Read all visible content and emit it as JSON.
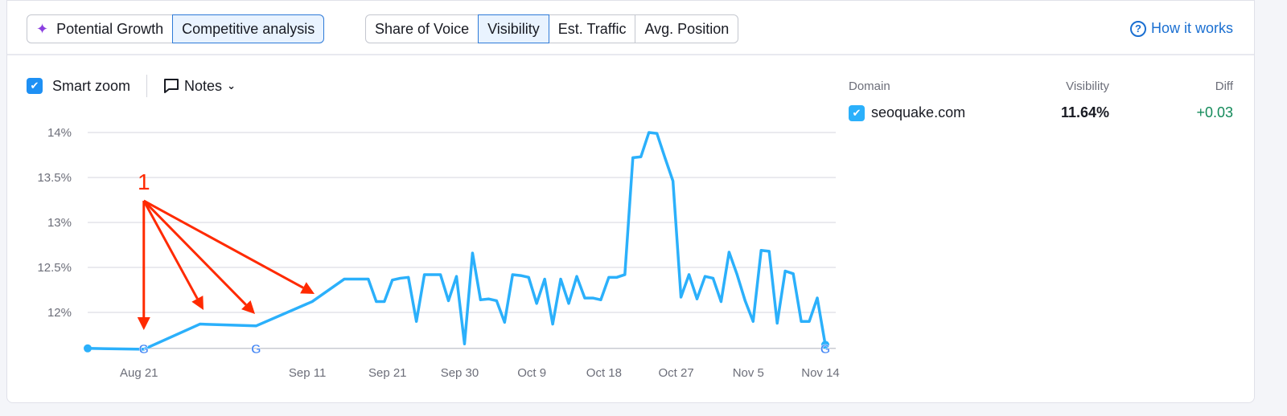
{
  "header": {
    "mode_tabs": [
      {
        "label": "Potential Growth",
        "icon": "sparkle-icon",
        "active": false
      },
      {
        "label": "Competitive analysis",
        "active": true
      }
    ],
    "metric_tabs": [
      {
        "label": "Share of Voice",
        "active": false
      },
      {
        "label": "Visibility",
        "active": true
      },
      {
        "label": "Est. Traffic",
        "active": false
      },
      {
        "label": "Avg. Position",
        "active": false
      }
    ],
    "how_it_works": "How it works"
  },
  "toolbar": {
    "smart_zoom_label": "Smart zoom",
    "smart_zoom_checked": true,
    "notes_label": "Notes"
  },
  "legend": {
    "columns": [
      "Domain",
      "Visibility",
      "Diff"
    ],
    "rows": [
      {
        "domain": "seoquake.com",
        "visibility": "11.64%",
        "diff": "+0.03",
        "checked": true
      }
    ]
  },
  "colors": {
    "line": "#2bb0fb",
    "accent": "#1a6fd1",
    "annotation": "#ff2a00",
    "diff_positive": "#138a5a"
  },
  "chart_data": {
    "type": "line",
    "y_ticks": [
      "14%",
      "13.5%",
      "13%",
      "12.5%",
      "12%"
    ],
    "y_tick_values": [
      14,
      13.5,
      13,
      12.5,
      12
    ],
    "ylim": [
      11.6,
      14
    ],
    "x_ticks": [
      "Aug 21",
      "Sep 11",
      "Sep 21",
      "Sep 30",
      "Oct 9",
      "Oct 18",
      "Oct 27",
      "Nov 5",
      "Nov 14"
    ],
    "grid": true,
    "google_update_markers": [
      "Aug 21",
      "Sep 4",
      "Nov 14"
    ],
    "annotation": {
      "label": "1",
      "targets": [
        "Aug 21",
        "Aug 28",
        "Sep 4",
        "Sep 11"
      ]
    },
    "series": [
      {
        "points": [
          [
            "Aug 14",
            11.6
          ],
          [
            "Aug 21",
            11.59
          ],
          [
            "Aug 28",
            11.87
          ],
          [
            "Sep 4",
            11.85
          ],
          [
            "Sep 11",
            12.12
          ],
          [
            "Sep 15",
            12.37
          ],
          [
            "Sep 16",
            12.37
          ],
          [
            "Sep 17",
            12.37
          ],
          [
            "Sep 18",
            12.37
          ],
          [
            "Sep 19",
            12.12
          ],
          [
            "Sep 20",
            12.12
          ],
          [
            "Sep 21",
            12.36
          ],
          [
            "Sep 22",
            12.38
          ],
          [
            "Sep 23",
            12.39
          ],
          [
            "Sep 24",
            11.9
          ],
          [
            "Sep 25",
            12.42
          ],
          [
            "Sep 26",
            12.42
          ],
          [
            "Sep 27",
            12.42
          ],
          [
            "Sep 28",
            12.13
          ],
          [
            "Sep 29",
            12.4
          ],
          [
            "Sep 30",
            11.65
          ],
          [
            "Oct 1",
            12.66
          ],
          [
            "Oct 2",
            12.14
          ],
          [
            "Oct 3",
            12.15
          ],
          [
            "Oct 4",
            12.13
          ],
          [
            "Oct 5",
            11.89
          ],
          [
            "Oct 6",
            12.42
          ],
          [
            "Oct 7",
            12.41
          ],
          [
            "Oct 8",
            12.39
          ],
          [
            "Oct 9",
            12.1
          ],
          [
            "Oct 10",
            12.37
          ],
          [
            "Oct 11",
            11.87
          ],
          [
            "Oct 12",
            12.37
          ],
          [
            "Oct 13",
            12.1
          ],
          [
            "Oct 14",
            12.4
          ],
          [
            "Oct 15",
            12.16
          ],
          [
            "Oct 16",
            12.16
          ],
          [
            "Oct 17",
            12.14
          ],
          [
            "Oct 18",
            12.39
          ],
          [
            "Oct 19",
            12.39
          ],
          [
            "Oct 20",
            12.42
          ],
          [
            "Oct 21",
            13.72
          ],
          [
            "Oct 22",
            13.73
          ],
          [
            "Oct 23",
            14.0
          ],
          [
            "Oct 24",
            13.99
          ],
          [
            "Oct 25",
            13.72
          ],
          [
            "Oct 26",
            13.46
          ],
          [
            "Oct 27",
            12.17
          ],
          [
            "Oct 28",
            12.42
          ],
          [
            "Oct 29",
            12.15
          ],
          [
            "Oct 30",
            12.4
          ],
          [
            "Oct 31",
            12.38
          ],
          [
            "Nov 1",
            12.12
          ],
          [
            "Nov 2",
            12.67
          ],
          [
            "Nov 3",
            12.42
          ],
          [
            "Nov 4",
            12.13
          ],
          [
            "Nov 5",
            11.9
          ],
          [
            "Nov 6",
            12.69
          ],
          [
            "Nov 7",
            12.68
          ],
          [
            "Nov 8",
            11.88
          ],
          [
            "Nov 9",
            12.46
          ],
          [
            "Nov 10",
            12.43
          ],
          [
            "Nov 11",
            11.9
          ],
          [
            "Nov 12",
            11.9
          ],
          [
            "Nov 13",
            12.16
          ],
          [
            "Nov 14",
            11.64
          ]
        ]
      }
    ]
  }
}
